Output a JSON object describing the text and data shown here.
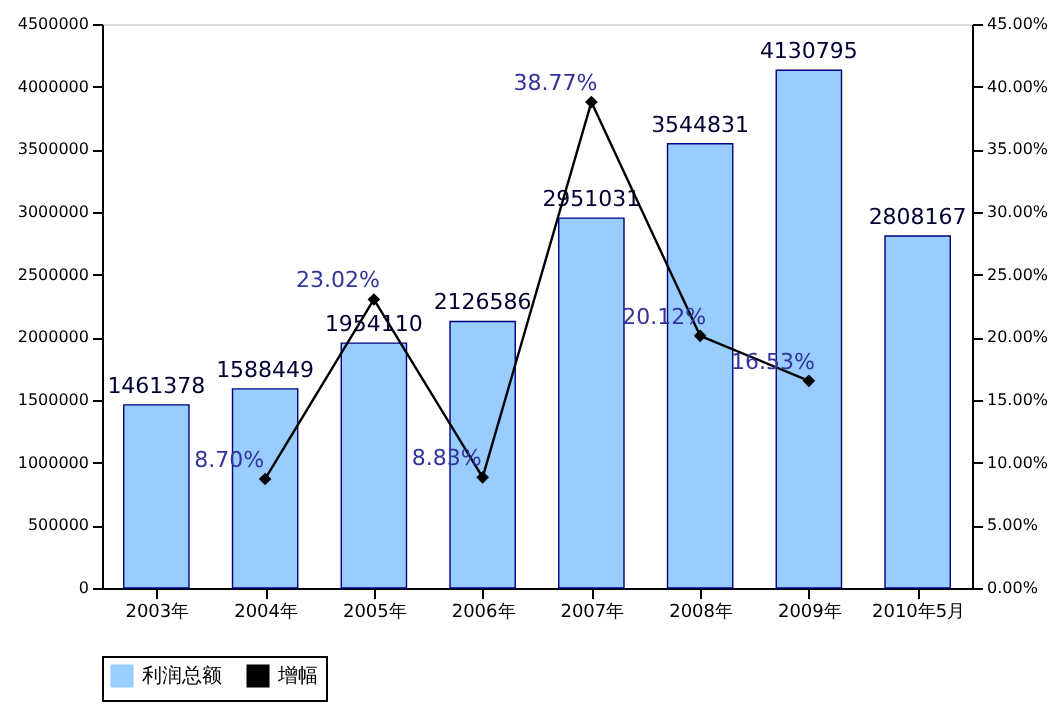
{
  "chart_data": {
    "type": "bar",
    "categories": [
      "2003年",
      "2004年",
      "2005年",
      "2006年",
      "2007年",
      "2008年",
      "2009年",
      "2010年5月"
    ],
    "series": [
      {
        "name": "利润总额",
        "color": "#99ccff",
        "values": [
          1461378,
          1588449,
          1954110,
          2126586,
          2951031,
          3544831,
          4130795,
          2808167
        ],
        "value_labels": [
          "1461378",
          "1588449",
          "1954110",
          "2126586",
          "2951031",
          "3544831",
          "4130795",
          "2808167"
        ]
      },
      {
        "name": "增幅",
        "type": "line",
        "axis": "y2",
        "color": "#000000",
        "marker": "diamond",
        "values": [
          null,
          8.7,
          23.02,
          8.83,
          38.77,
          20.12,
          16.53,
          null
        ],
        "value_labels": [
          null,
          "8.70%",
          "23.02%",
          "8.83%",
          "38.77%",
          "20.12%",
          "16.53%",
          null
        ]
      }
    ],
    "ylim": [
      0,
      4500000
    ],
    "yticks": [
      0,
      500000,
      1000000,
      1500000,
      2000000,
      2500000,
      3000000,
      3500000,
      4000000,
      4500000
    ],
    "y2lim": [
      0,
      45
    ],
    "y2ticks": [
      {
        "value": 0,
        "label": "0.00%"
      },
      {
        "value": 5,
        "label": "5.00%"
      },
      {
        "value": 10,
        "label": "10.00%"
      },
      {
        "value": 15,
        "label": "15.00%"
      },
      {
        "value": 20,
        "label": "20.00%"
      },
      {
        "value": 25,
        "label": "25.00%"
      },
      {
        "value": 30,
        "label": "30.00%"
      },
      {
        "value": 35,
        "label": "35.00%"
      },
      {
        "value": 40,
        "label": "40.00%"
      },
      {
        "value": 45,
        "label": "45.00%"
      }
    ],
    "grid": false,
    "legend": "bottom"
  }
}
